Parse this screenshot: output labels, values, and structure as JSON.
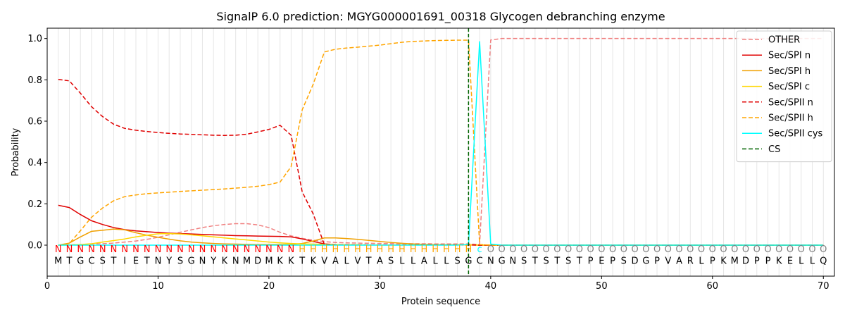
{
  "chart_data": {
    "type": "line",
    "title": "SignalP 6.0 prediction: MGYG000001691_00318 Glycogen debranching enzyme",
    "xlabel": "Protein sequence",
    "ylabel": "Probability",
    "xlim": [
      0,
      71
    ],
    "ylim": [
      -0.15,
      1.05
    ],
    "xticks": [
      0,
      10,
      20,
      30,
      40,
      50,
      60,
      70
    ],
    "yticks": [
      0.0,
      0.2,
      0.4,
      0.6,
      0.8,
      1.0
    ],
    "grid": "vertical lines at each residue",
    "legend_position": "top-right",
    "sequence": [
      "M",
      "T",
      "G",
      "C",
      "S",
      "T",
      "I",
      "E",
      "T",
      "N",
      "Y",
      "S",
      "G",
      "N",
      "Y",
      "K",
      "N",
      "M",
      "D",
      "M",
      "K",
      "K",
      "T",
      "K",
      "V",
      "A",
      "L",
      "V",
      "T",
      "A",
      "S",
      "L",
      "L",
      "A",
      "L",
      "L",
      "S",
      "G",
      "C",
      "N",
      "G",
      "N",
      "S",
      "T",
      "S",
      "T",
      "S",
      "T",
      "P",
      "E",
      "P",
      "S",
      "D",
      "G",
      "P",
      "V",
      "A",
      "R",
      "L",
      "P",
      "K",
      "M",
      "D",
      "P",
      "P",
      "K",
      "E",
      "L",
      "L",
      "Q"
    ],
    "annotation": [
      "N",
      "N",
      "N",
      "N",
      "N",
      "N",
      "N",
      "N",
      "N",
      "N",
      "N",
      "N",
      "N",
      "N",
      "N",
      "N",
      "N",
      "N",
      "N",
      "N",
      "N",
      "N",
      "H",
      "H",
      "H",
      "H",
      "H",
      "H",
      "H",
      "H",
      "H",
      "H",
      "H",
      "H",
      "H",
      "H",
      "H",
      "H",
      "c",
      "O",
      "O",
      "O",
      "O",
      "O",
      "O",
      "O",
      "O",
      "O",
      "O",
      "O",
      "O",
      "O",
      "O",
      "O",
      "O",
      "O",
      "O",
      "O",
      "O",
      "O",
      "O",
      "O",
      "O",
      "O",
      "O",
      "O",
      "O",
      "O",
      "O",
      "O"
    ],
    "annotation_colors": {
      "N": "#ff0000",
      "H": "#ffa500",
      "c": "#00ffff",
      "O": "#808080"
    },
    "cleavage_site": 38,
    "series": [
      {
        "name": "OTHER",
        "color": "#f08080",
        "dash": "dashed",
        "values": [
          0.0,
          0.002,
          0.003,
          0.005,
          0.007,
          0.01,
          0.015,
          0.02,
          0.028,
          0.038,
          0.05,
          0.062,
          0.074,
          0.085,
          0.094,
          0.1,
          0.104,
          0.104,
          0.098,
          0.085,
          0.062,
          0.045,
          0.033,
          0.024,
          0.017,
          0.013,
          0.011,
          0.01,
          0.009,
          0.008,
          0.008,
          0.007,
          0.007,
          0.007,
          0.006,
          0.006,
          0.006,
          0.006,
          0.003,
          0.993,
          1.0,
          1.0,
          1.0,
          1.0,
          1.0,
          1.0,
          1.0,
          1.0,
          1.0,
          1.0,
          1.0,
          1.0,
          1.0,
          1.0,
          1.0,
          1.0,
          1.0,
          1.0,
          1.0,
          1.0,
          1.0,
          1.0,
          1.0,
          1.0,
          1.0,
          1.0,
          1.0,
          1.0,
          1.0,
          1.0
        ]
      },
      {
        "name": "Sec/SPI n",
        "color": "#e00000",
        "dash": "solid",
        "values": [
          0.193,
          0.182,
          0.148,
          0.118,
          0.1,
          0.085,
          0.075,
          0.069,
          0.065,
          0.061,
          0.058,
          0.056,
          0.054,
          0.052,
          0.05,
          0.048,
          0.046,
          0.045,
          0.044,
          0.043,
          0.042,
          0.04,
          0.03,
          0.018,
          0.006,
          0.003,
          0.002,
          0.001,
          0.001,
          0.001,
          0.001,
          0.001,
          0.001,
          0.001,
          0.001,
          0.001,
          0.001,
          0.001,
          0.0,
          0.0,
          0.0,
          0.0,
          0.0,
          0.0,
          0.0,
          0.0,
          0.0,
          0.0,
          0.0,
          0.0,
          0.0,
          0.0,
          0.0,
          0.0,
          0.0,
          0.0,
          0.0,
          0.0,
          0.0,
          0.0,
          0.0,
          0.0,
          0.0,
          0.0,
          0.0,
          0.0,
          0.0,
          0.0,
          0.0,
          0.0
        ]
      },
      {
        "name": "Sec/SPI h",
        "color": "#f0a000",
        "dash": "solid",
        "values": [
          0.0,
          0.01,
          0.04,
          0.067,
          0.072,
          0.078,
          0.074,
          0.06,
          0.048,
          0.038,
          0.029,
          0.021,
          0.015,
          0.011,
          0.008,
          0.006,
          0.005,
          0.004,
          0.003,
          0.003,
          0.003,
          0.003,
          0.008,
          0.02,
          0.035,
          0.035,
          0.032,
          0.028,
          0.023,
          0.018,
          0.013,
          0.009,
          0.006,
          0.004,
          0.003,
          0.002,
          0.002,
          0.002,
          0.001,
          0.0,
          0.0,
          0.0,
          0.0,
          0.0,
          0.0,
          0.0,
          0.0,
          0.0,
          0.0,
          0.0,
          0.0,
          0.0,
          0.0,
          0.0,
          0.0,
          0.0,
          0.0,
          0.0,
          0.0,
          0.0,
          0.0,
          0.0,
          0.0,
          0.0,
          0.0,
          0.0,
          0.0,
          0.0,
          0.0,
          0.0
        ]
      },
      {
        "name": "Sec/SPI c",
        "color": "#ffd700",
        "dash": "solid",
        "values": [
          0.0,
          0.001,
          0.003,
          0.007,
          0.015,
          0.022,
          0.03,
          0.04,
          0.048,
          0.055,
          0.056,
          0.054,
          0.05,
          0.045,
          0.04,
          0.035,
          0.03,
          0.025,
          0.02,
          0.015,
          0.011,
          0.008,
          0.006,
          0.005,
          0.004,
          0.003,
          0.002,
          0.002,
          0.001,
          0.001,
          0.001,
          0.001,
          0.001,
          0.001,
          0.001,
          0.001,
          0.001,
          0.001,
          0.0,
          0.0,
          0.0,
          0.0,
          0.0,
          0.0,
          0.0,
          0.0,
          0.0,
          0.0,
          0.0,
          0.0,
          0.0,
          0.0,
          0.0,
          0.0,
          0.0,
          0.0,
          0.0,
          0.0,
          0.0,
          0.0,
          0.0,
          0.0,
          0.0,
          0.0,
          0.0,
          0.0,
          0.0,
          0.0,
          0.0,
          0.0
        ]
      },
      {
        "name": "Sec/SPII n",
        "color": "#e00000",
        "dash": "dashed",
        "values": [
          0.802,
          0.795,
          0.735,
          0.67,
          0.622,
          0.585,
          0.565,
          0.556,
          0.55,
          0.545,
          0.541,
          0.538,
          0.536,
          0.534,
          0.532,
          0.531,
          0.532,
          0.537,
          0.548,
          0.56,
          0.58,
          0.532,
          0.258,
          0.15,
          0.002,
          0.001,
          0.001,
          0.001,
          0.001,
          0.001,
          0.001,
          0.001,
          0.001,
          0.001,
          0.001,
          0.001,
          0.001,
          0.001,
          0.0,
          0.0,
          0.0,
          0.0,
          0.0,
          0.0,
          0.0,
          0.0,
          0.0,
          0.0,
          0.0,
          0.0,
          0.0,
          0.0,
          0.0,
          0.0,
          0.0,
          0.0,
          0.0,
          0.0,
          0.0,
          0.0,
          0.0,
          0.0,
          0.0,
          0.0,
          0.0,
          0.0,
          0.0,
          0.0,
          0.0,
          0.0
        ]
      },
      {
        "name": "Sec/SPII h",
        "color": "#ffa500",
        "dash": "dashed",
        "values": [
          0.0,
          0.008,
          0.07,
          0.135,
          0.18,
          0.215,
          0.235,
          0.243,
          0.249,
          0.253,
          0.256,
          0.26,
          0.263,
          0.266,
          0.269,
          0.272,
          0.276,
          0.28,
          0.285,
          0.293,
          0.305,
          0.38,
          0.655,
          0.78,
          0.935,
          0.948,
          0.954,
          0.958,
          0.963,
          0.968,
          0.975,
          0.982,
          0.986,
          0.988,
          0.99,
          0.991,
          0.992,
          0.992,
          0.003,
          0.0,
          0.0,
          0.0,
          0.0,
          0.0,
          0.0,
          0.0,
          0.0,
          0.0,
          0.0,
          0.0,
          0.0,
          0.0,
          0.0,
          0.0,
          0.0,
          0.0,
          0.0,
          0.0,
          0.0,
          0.0,
          0.0,
          0.0,
          0.0,
          0.0,
          0.0,
          0.0,
          0.0,
          0.0,
          0.0,
          0.0
        ]
      },
      {
        "name": "Sec/SPII cys",
        "color": "#00ffff",
        "dash": "solid",
        "values": [
          0.0,
          0.0,
          0.0,
          0.0,
          0.0,
          0.0,
          0.0,
          0.0,
          0.0,
          0.0,
          0.0,
          0.0,
          0.0,
          0.0,
          0.0,
          0.0,
          0.0,
          0.0,
          0.0,
          0.0,
          0.0,
          0.0,
          0.0,
          0.0,
          0.0,
          0.0,
          0.0,
          0.0,
          0.0,
          0.0,
          0.0,
          0.0,
          0.0,
          0.0,
          0.0,
          0.0,
          0.0,
          0.003,
          0.985,
          0.005,
          0.0,
          0.0,
          0.0,
          0.0,
          0.0,
          0.0,
          0.0,
          0.0,
          0.0,
          0.0,
          0.0,
          0.0,
          0.0,
          0.0,
          0.0,
          0.0,
          0.0,
          0.0,
          0.0,
          0.0,
          0.0,
          0.0,
          0.0,
          0.0,
          0.0,
          0.0,
          0.0,
          0.0,
          0.0,
          0.0
        ]
      }
    ],
    "cs_legend": {
      "name": "CS",
      "color": "#006400",
      "dash": "dashed"
    }
  }
}
